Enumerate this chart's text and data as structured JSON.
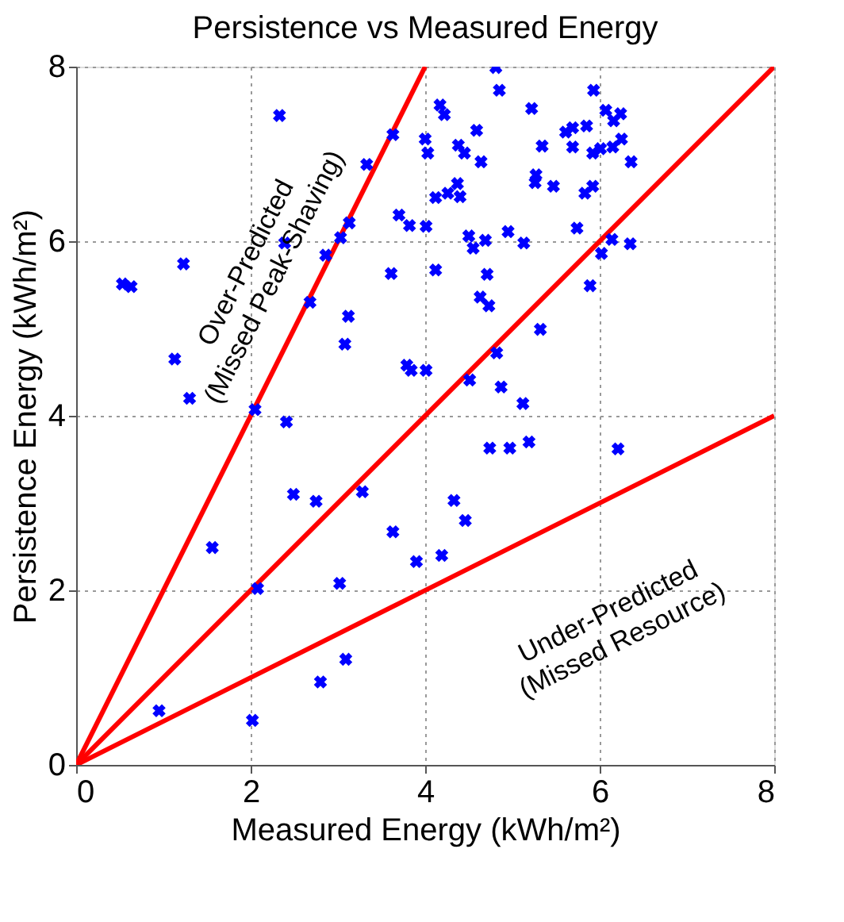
{
  "chart_data": {
    "type": "scatter",
    "title": "Persistence vs Measured Energy",
    "xlabel": "Measured Energy (kWh/m²)",
    "ylabel": "Persistence Energy (kWh/m²)",
    "xlim": [
      0,
      8
    ],
    "ylim": [
      0,
      8
    ],
    "xticks": [
      0,
      2,
      4,
      6,
      8
    ],
    "yticks": [
      0,
      2,
      4,
      6,
      8
    ],
    "grid": true,
    "annotations": [
      "Over-Predicted\n(Missed Peak-Shaving)",
      "Under-Predicted\n(Missed Resource)"
    ],
    "series": [
      {
        "type": "line",
        "color": "#ff0000",
        "marker": "none",
        "line_style": "solid",
        "x": [
          0,
          4
        ],
        "values": [
          0,
          8
        ]
      },
      {
        "type": "line",
        "color": "#ff0000",
        "marker": "none",
        "line_style": "solid",
        "x": [
          0,
          8
        ],
        "values": [
          0,
          8
        ]
      },
      {
        "type": "line",
        "color": "#ff0000",
        "marker": "none",
        "line_style": "solid",
        "x": [
          0,
          8
        ],
        "values": [
          0,
          4
        ]
      },
      {
        "color": "#0000ff",
        "marker": "cross",
        "x": [
          0.53,
          0.63,
          1.23,
          1.13,
          1.3,
          2.05,
          2.33,
          2.39,
          2.86,
          2.68,
          3.03,
          3.13,
          3.12,
          3.08,
          3.33,
          3.61,
          3.63,
          3.7,
          3.82,
          3.79,
          3.84,
          4.01,
          4.81,
          4.85,
          4.17,
          4.22,
          4.0,
          4.03,
          4.59,
          4.38,
          4.45,
          4.64,
          4.37,
          4.26,
          4.4,
          4.12,
          4.01,
          4.5,
          4.55,
          4.69,
          4.95,
          5.13,
          4.12,
          4.71,
          4.63,
          4.73,
          5.22,
          5.34,
          5.27,
          5.26,
          5.47,
          5.61,
          5.69,
          5.85,
          5.69,
          5.93,
          6.07,
          6.24,
          6.16,
          6.25,
          6.15,
          6.01,
          5.92,
          6.36,
          5.83,
          5.92,
          5.74,
          6.14,
          6.35,
          6.02,
          5.89,
          5.32,
          4.82,
          4.51,
          4.87,
          5.12,
          2.41,
          2.49,
          2.75,
          3.28,
          3.63,
          3.9,
          1.56,
          2.08,
          3.02,
          3.09,
          2.8,
          0.95,
          2.02,
          4.74,
          4.97,
          5.19,
          6.21,
          4.33,
          4.46,
          4.19
        ],
        "values": [
          5.51,
          5.48,
          5.74,
          4.65,
          4.2,
          4.07,
          7.44,
          5.98,
          5.84,
          5.3,
          6.04,
          6.21,
          5.14,
          4.82,
          6.88,
          5.63,
          7.22,
          6.3,
          6.18,
          4.58,
          4.52,
          4.52,
          7.99,
          7.73,
          7.56,
          7.45,
          7.17,
          7.01,
          7.27,
          7.1,
          7.01,
          6.91,
          6.66,
          6.55,
          6.51,
          6.5,
          6.17,
          6.06,
          5.92,
          6.01,
          6.11,
          5.98,
          5.67,
          5.62,
          5.36,
          5.26,
          7.52,
          7.09,
          6.76,
          6.67,
          6.63,
          7.25,
          7.3,
          7.32,
          7.08,
          7.73,
          7.5,
          7.46,
          7.38,
          7.17,
          7.08,
          7.06,
          7.01,
          6.91,
          6.55,
          6.63,
          6.15,
          6.02,
          5.97,
          5.86,
          5.49,
          4.99,
          4.72,
          4.41,
          4.33,
          4.14,
          3.93,
          3.1,
          3.02,
          3.13,
          2.67,
          2.33,
          2.49,
          2.02,
          2.08,
          1.21,
          0.95,
          0.62,
          0.51,
          3.63,
          3.63,
          3.7,
          3.62,
          3.03,
          2.8,
          2.4
        ]
      }
    ]
  }
}
